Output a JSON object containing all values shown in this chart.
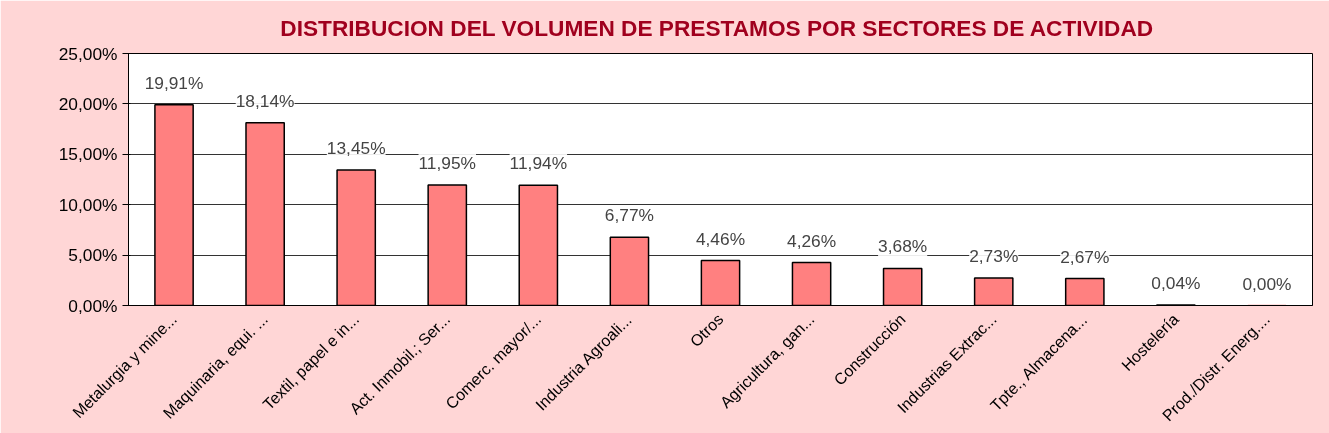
{
  "chart_data": {
    "type": "bar",
    "title": "DISTRIBUCION DEL VOLUMEN DE PRESTAMOS  POR SECTORES DE ACTIVIDAD",
    "categories": [
      "Metalurgia y mine...",
      "Maquinaria, equi. ...",
      "Textil, papel e in...",
      "Act. Inmobil.; Ser...",
      "Comerc. mayor/...",
      "Industria Agroali...",
      "Otros",
      "Agricultura, gan...",
      "Construcción",
      "Industrias Extrac...",
      "Tpte., Almacena...",
      "Hostelería",
      "Prod./Distr. Energ...."
    ],
    "values": [
      19.91,
      18.14,
      13.45,
      11.95,
      11.94,
      6.77,
      4.46,
      4.26,
      3.68,
      2.73,
      2.67,
      0.04,
      0.0
    ],
    "value_labels": [
      "19,91%",
      "18,14%",
      "13,45%",
      "11,95%",
      "11,94%",
      "6,77%",
      "4,46%",
      "4,26%",
      "3,68%",
      "2,73%",
      "2,67%",
      "0,04%",
      "0,00%"
    ],
    "color": "#ff8080",
    "ylim": [
      0,
      25
    ],
    "yticks": [
      {
        "value": 0,
        "label": "0,00%"
      },
      {
        "value": 5,
        "label": "5,00%"
      },
      {
        "value": 10,
        "label": "10,00%"
      },
      {
        "value": 15,
        "label": "15,00%"
      },
      {
        "value": 20,
        "label": "20,00%"
      },
      {
        "value": 25,
        "label": "25,00%"
      }
    ],
    "grid": "y"
  }
}
